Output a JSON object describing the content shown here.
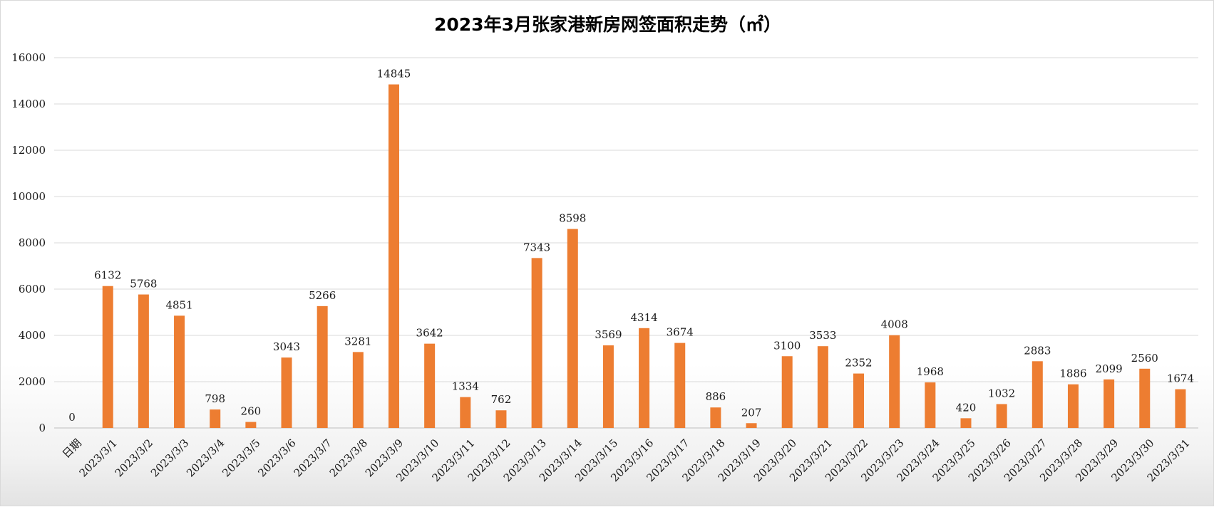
{
  "chart_data": {
    "type": "bar",
    "title": "2023年3月张家港新房网签面积走势（㎡）",
    "xlabel": "",
    "ylabel": "",
    "ylim": [
      0,
      16000
    ],
    "yticks": [
      0,
      2000,
      4000,
      6000,
      8000,
      10000,
      12000,
      14000,
      16000
    ],
    "grid": true,
    "legend": "none",
    "bar_color": "#ED7D31",
    "categories": [
      "日期",
      "2023/3/1",
      "2023/3/2",
      "2023/3/3",
      "2023/3/4",
      "2023/3/5",
      "2023/3/6",
      "2023/3/7",
      "2023/3/8",
      "2023/3/9",
      "2023/3/10",
      "2023/3/11",
      "2023/3/12",
      "2023/3/13",
      "2023/3/14",
      "2023/3/15",
      "2023/3/16",
      "2023/3/17",
      "2023/3/18",
      "2023/3/19",
      "2023/3/20",
      "2023/3/21",
      "2023/3/22",
      "2023/3/23",
      "2023/3/24",
      "2023/3/25",
      "2023/3/26",
      "2023/3/27",
      "2023/3/28",
      "2023/3/29",
      "2023/3/30",
      "2023/3/31"
    ],
    "values": [
      0,
      6132,
      5768,
      4851,
      798,
      260,
      3043,
      5266,
      3281,
      14845,
      3642,
      1334,
      762,
      7343,
      8598,
      3569,
      4314,
      3674,
      886,
      207,
      3100,
      3533,
      2352,
      4008,
      1968,
      420,
      1032,
      2883,
      1886,
      2099,
      2560,
      1674
    ]
  }
}
